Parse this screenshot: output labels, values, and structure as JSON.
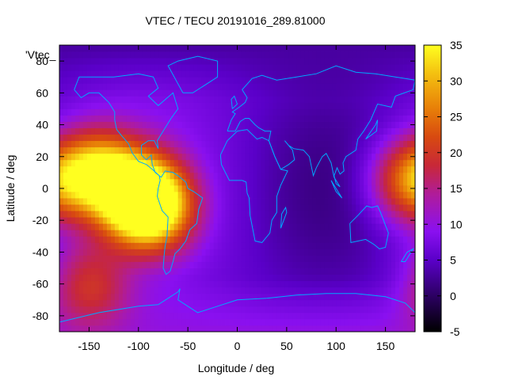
{
  "chart_data": {
    "type": "heatmap",
    "title": "VTEC / TECU 20191016_289.81000",
    "xlabel": "Longitude / deg",
    "ylabel": "Latitude / deg",
    "xlim": [
      -180,
      180
    ],
    "ylim": [
      -90,
      90
    ],
    "x_ticks": [
      -150,
      -100,
      -50,
      0,
      50,
      100,
      150
    ],
    "y_ticks": [
      -80,
      -60,
      -40,
      -20,
      0,
      20,
      40,
      60,
      80
    ],
    "colorbar": {
      "range": [
        -5,
        35
      ],
      "ticks": [
        -5,
        0,
        5,
        10,
        15,
        20,
        25,
        30,
        35
      ],
      "palette": [
        "#000000",
        "#2a005e",
        "#5a00c8",
        "#8a10f0",
        "#b01c9a",
        "#c82838",
        "#d84a10",
        "#e88008",
        "#f4c010",
        "#ffff20"
      ]
    },
    "overlay_label": "'Vtec_",
    "coastline_color": "#00a8ff",
    "grid": false,
    "values_description_note": "",
    "hotspots": [
      {
        "lon": -140,
        "lat": 10,
        "value": 30
      },
      {
        "lon": -100,
        "lat": -5,
        "value": 33
      },
      {
        "lon": -85,
        "lat": -12,
        "value": 30
      },
      {
        "lon": 175,
        "lat": 5,
        "value": 25
      },
      {
        "lon": -150,
        "lat": -60,
        "value": 18
      }
    ]
  }
}
